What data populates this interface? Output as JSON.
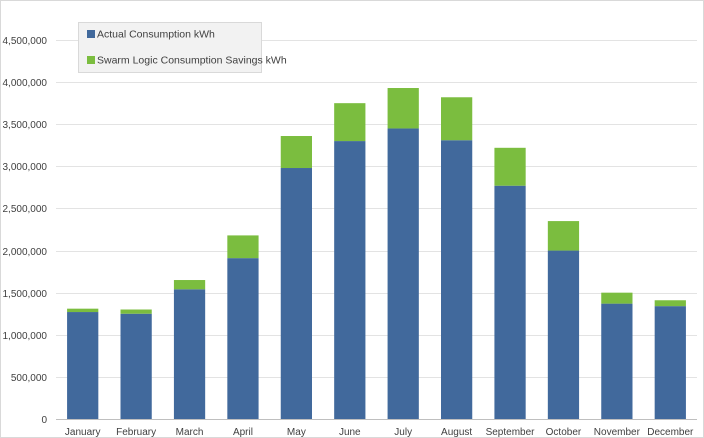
{
  "chart_data": {
    "type": "bar",
    "stacked": true,
    "categories": [
      "January",
      "February",
      "March",
      "April",
      "May",
      "June",
      "July",
      "August",
      "September",
      "October",
      "November",
      "December"
    ],
    "series": [
      {
        "name": "Actual Consumption kWh",
        "color": "#41699c",
        "values": [
          1270000,
          1250000,
          1540000,
          1910000,
          2980000,
          3300000,
          3450000,
          3310000,
          2770000,
          2000000,
          1370000,
          1340000
        ]
      },
      {
        "name": "Swarm Logic Consumption Savings kWh",
        "color": "#7bbd3f",
        "values": [
          40000,
          50000,
          110000,
          270000,
          380000,
          450000,
          480000,
          510000,
          450000,
          350000,
          130000,
          70000
        ]
      }
    ],
    "ylim": [
      0,
      4500000
    ],
    "yticks": [
      0,
      500000,
      1000000,
      1500000,
      2000000,
      2500000,
      3000000,
      3500000,
      4000000,
      4500000
    ],
    "ytick_labels": [
      "0",
      "500,000",
      "1,000,000",
      "1,500,000",
      "2,000,000",
      "2,500,000",
      "3,000,000",
      "3,500,000",
      "4,000,000",
      "4,500,000"
    ],
    "grid": true,
    "legend_position": "top-left"
  }
}
